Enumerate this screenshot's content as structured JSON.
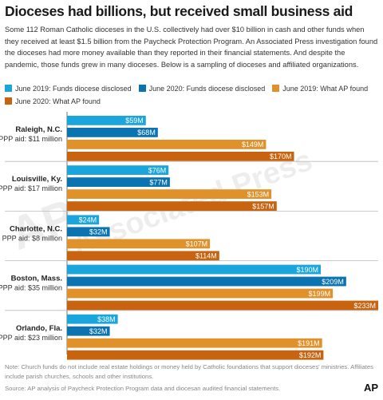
{
  "title": "Dioceses had billions, but received small business aid",
  "subtitle": "Some 112 Roman Catholic dioceses in the U.S. collectively had over $10 billion in cash and other funds when they received at least $1.5 billion from the Paycheck Protection Program. An Associated Press investigation found the dioceses had more money available than they reported in their financial statements. And despite the pandemic, those funds grew in many dioceses. Below is a sampling of dioceses and affiliated organizations.",
  "note": "Note: Church funds do not include real estate holdings or money held by Catholic foundations that support dioceses' ministries. Affiliates include parish churches, schools and other institutions.",
  "source": "Source: AP analysis of Paycheck Protection Program data and diocesan audited financial statements.",
  "logo": "AP",
  "watermark": "Associated Press",
  "colors": {
    "June 2019: Funds diocese disclosed": "#1aa6dc",
    "June 2020: Funds diocese disclosed": "#0b73b0",
    "June 2019: What AP found": "#e0912a",
    "June 2020: What AP found": "#c8630f",
    "separator": "#bbbbbb",
    "value_text": "#ffffff"
  },
  "chart_data": {
    "type": "bar",
    "orientation": "horizontal",
    "unit": "$M",
    "categories": [
      "Raleigh, N.C.",
      "Louisville, Ky.",
      "Charlotte, N.C.",
      "Boston, Mass.",
      "Orlando, Fla."
    ],
    "ppp_aid": [
      "PPP aid: $11 million",
      "PPP aid: $17 million",
      "PPP aid: $8 million",
      "PPP aid: $35 million",
      "PPP aid: $23 million"
    ],
    "series": [
      {
        "name": "June 2019: Funds diocese disclosed",
        "values": [
          59,
          76,
          24,
          190,
          38
        ],
        "labels": [
          "$59M",
          "$76M",
          "$24M",
          "$190M",
          "$38M"
        ]
      },
      {
        "name": "June 2020: Funds diocese disclosed",
        "values": [
          68,
          77,
          32,
          209,
          32
        ],
        "labels": [
          "$68M",
          "$77M",
          "$32M",
          "$209M",
          "$32M"
        ]
      },
      {
        "name": "June 2019: What AP found",
        "values": [
          149,
          153,
          107,
          199,
          191
        ],
        "labels": [
          "$149M",
          "$153M",
          "$107M",
          "$199M",
          "$191M"
        ]
      },
      {
        "name": "June 2020: What AP found",
        "values": [
          170,
          157,
          114,
          233,
          192
        ],
        "labels": [
          "$170M",
          "$157M",
          "$114M",
          "$233M",
          "$192M"
        ]
      }
    ],
    "xlim": [
      0,
      233
    ],
    "legend": "top",
    "grid": false
  }
}
